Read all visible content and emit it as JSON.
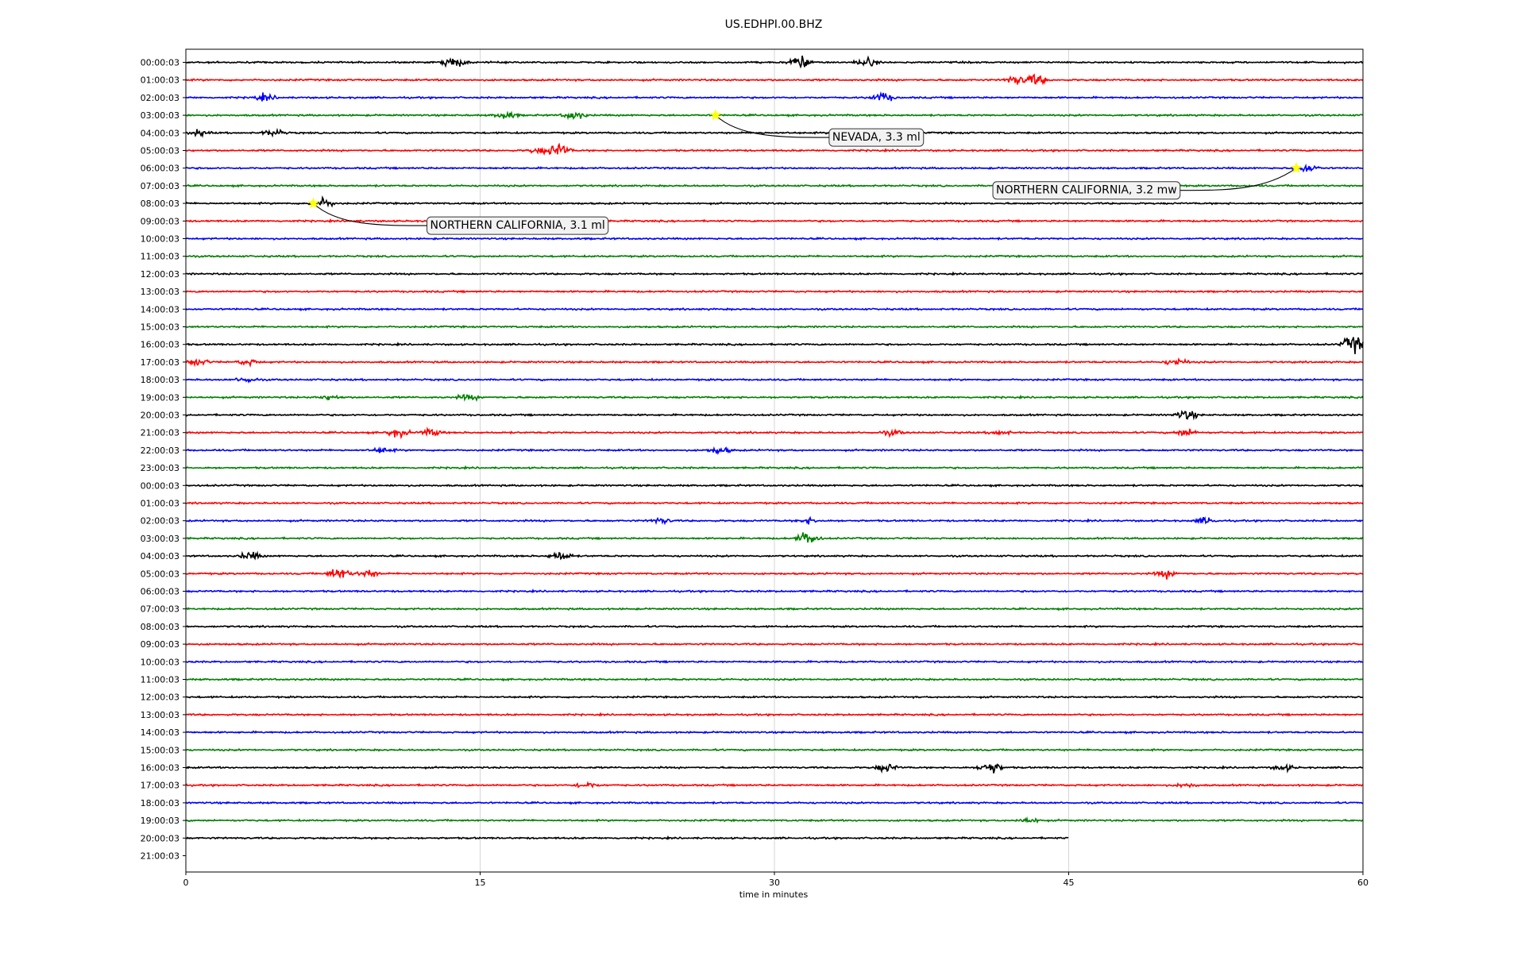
{
  "chart_data": {
    "type": "line",
    "title": "US.EDHPI.00.BHZ",
    "xlabel": "time in minutes",
    "ylabel": "",
    "xlim": [
      0,
      60
    ],
    "x_ticks": [
      "0",
      "15",
      "30",
      "45",
      "60"
    ],
    "grid_x": true,
    "line_colors": [
      "#000000",
      "#ff0000",
      "#0000ff",
      "#008000"
    ],
    "row_labels": [
      "00:00:03",
      "01:00:03",
      "02:00:03",
      "03:00:03",
      "04:00:03",
      "05:00:03",
      "06:00:03",
      "07:00:03",
      "08:00:03",
      "09:00:03",
      "10:00:03",
      "11:00:03",
      "12:00:03",
      "13:00:03",
      "14:00:03",
      "15:00:03",
      "16:00:03",
      "17:00:03",
      "18:00:03",
      "19:00:03",
      "20:00:03",
      "21:00:03",
      "22:00:03",
      "23:00:03",
      "00:00:03",
      "01:00:03",
      "02:00:03",
      "03:00:03",
      "04:00:03",
      "05:00:03",
      "06:00:03",
      "07:00:03",
      "08:00:03",
      "09:00:03",
      "10:00:03",
      "11:00:03",
      "12:00:03",
      "13:00:03",
      "14:00:03",
      "15:00:03",
      "16:00:03",
      "17:00:03",
      "18:00:03",
      "19:00:03",
      "20:00:03",
      "21:00:03"
    ],
    "last_row_end_minute": 45,
    "events": [
      {
        "label": "NEVADA, 3.3 ml",
        "row": 3,
        "minute": 27.0,
        "label_side": "right"
      },
      {
        "label": "NORTHERN CALIFORNIA, 3.2 mw",
        "row": 6,
        "minute": 56.6,
        "label_side": "left"
      },
      {
        "label": "NORTHERN CALIFORNIA, 3.1 ml",
        "row": 8,
        "minute": 6.5,
        "label_side": "right"
      }
    ],
    "event_marker_color": "#ffff00",
    "bursts": [
      {
        "row": 0,
        "minute": 13.7,
        "amp": 1.6
      },
      {
        "row": 0,
        "minute": 31.3,
        "amp": 1.8
      },
      {
        "row": 0,
        "minute": 34.7,
        "amp": 1.2
      },
      {
        "row": 1,
        "minute": 42.3,
        "amp": 1.3
      },
      {
        "row": 1,
        "minute": 43.3,
        "amp": 1.6
      },
      {
        "row": 2,
        "minute": 35.5,
        "amp": 1.4
      },
      {
        "row": 2,
        "minute": 4.0,
        "amp": 0.9
      },
      {
        "row": 3,
        "minute": 16.3,
        "amp": 1.1
      },
      {
        "row": 3,
        "minute": 19.8,
        "amp": 1.3
      },
      {
        "row": 4,
        "minute": 4.5,
        "amp": 1.0
      },
      {
        "row": 4,
        "minute": 0.6,
        "amp": 0.8
      },
      {
        "row": 5,
        "minute": 19.0,
        "amp": 2.0
      },
      {
        "row": 5,
        "minute": 18.0,
        "amp": 0.8
      },
      {
        "row": 6,
        "minute": 57.1,
        "amp": 1.4
      },
      {
        "row": 8,
        "minute": 7.0,
        "amp": 1.5
      },
      {
        "row": 16,
        "minute": 59.5,
        "amp": 2.6
      },
      {
        "row": 17,
        "minute": 0.6,
        "amp": 1.0
      },
      {
        "row": 17,
        "minute": 3.2,
        "amp": 0.9
      },
      {
        "row": 17,
        "minute": 50.5,
        "amp": 1.0
      },
      {
        "row": 18,
        "minute": 3.1,
        "amp": 0.8
      },
      {
        "row": 19,
        "minute": 7.3,
        "amp": 0.7
      },
      {
        "row": 19,
        "minute": 14.4,
        "amp": 0.8
      },
      {
        "row": 20,
        "minute": 51.0,
        "amp": 1.4
      },
      {
        "row": 21,
        "minute": 10.8,
        "amp": 1.2
      },
      {
        "row": 21,
        "minute": 12.5,
        "amp": 1.0
      },
      {
        "row": 21,
        "minute": 36.0,
        "amp": 0.7
      },
      {
        "row": 21,
        "minute": 41.5,
        "amp": 0.7
      },
      {
        "row": 21,
        "minute": 51.0,
        "amp": 1.1
      },
      {
        "row": 22,
        "minute": 10.0,
        "amp": 0.8
      },
      {
        "row": 22,
        "minute": 27.2,
        "amp": 1.0
      },
      {
        "row": 26,
        "minute": 24.2,
        "amp": 0.8
      },
      {
        "row": 26,
        "minute": 31.8,
        "amp": 0.8
      },
      {
        "row": 26,
        "minute": 52.0,
        "amp": 0.9
      },
      {
        "row": 27,
        "minute": 31.7,
        "amp": 2.0
      },
      {
        "row": 28,
        "minute": 3.3,
        "amp": 1.1
      },
      {
        "row": 28,
        "minute": 19.1,
        "amp": 1.3
      },
      {
        "row": 29,
        "minute": 7.8,
        "amp": 1.8
      },
      {
        "row": 29,
        "minute": 9.3,
        "amp": 1.1
      },
      {
        "row": 29,
        "minute": 50.0,
        "amp": 1.1
      },
      {
        "row": 40,
        "minute": 41.0,
        "amp": 1.9
      },
      {
        "row": 40,
        "minute": 35.7,
        "amp": 1.2
      },
      {
        "row": 40,
        "minute": 56.0,
        "amp": 0.8
      },
      {
        "row": 41,
        "minute": 20.4,
        "amp": 0.9
      },
      {
        "row": 41,
        "minute": 51.0,
        "amp": 0.6
      },
      {
        "row": 43,
        "minute": 43.0,
        "amp": 0.8
      }
    ]
  }
}
